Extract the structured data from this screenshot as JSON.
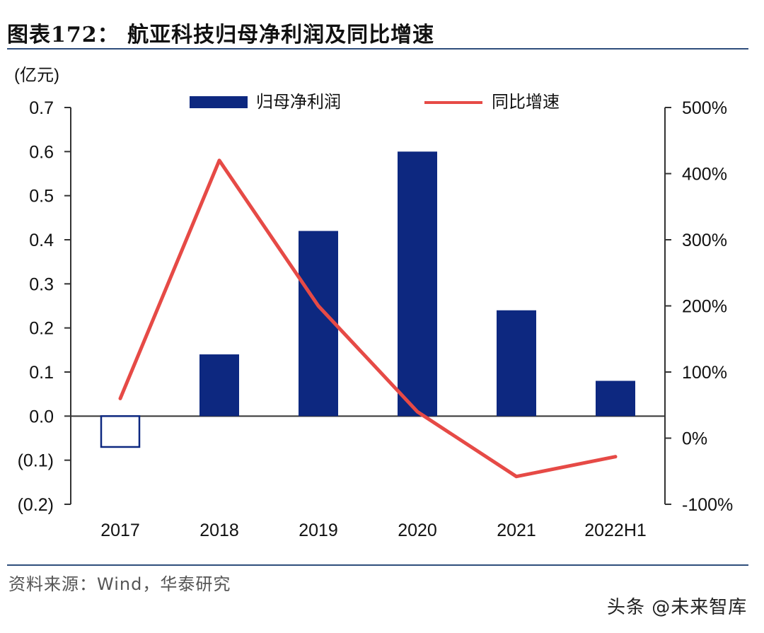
{
  "title": "图表172：  航亚科技归母净利润及同比增速",
  "source": "资料来源：Wind，华泰研究",
  "watermark": "头条 @未来智库",
  "chart_data": {
    "type": "bar+line",
    "y_left_unit": "(亿元)",
    "categories": [
      "2017",
      "2018",
      "2019",
      "2020",
      "2021",
      "2022H1"
    ],
    "series": [
      {
        "name": "归母净利润",
        "type": "bar",
        "axis": "left",
        "values": [
          -0.07,
          0.14,
          0.42,
          0.6,
          0.24,
          0.08
        ],
        "color": "#0d2880"
      },
      {
        "name": "同比增速",
        "type": "line",
        "axis": "right",
        "values": [
          60,
          420,
          200,
          40,
          -58,
          -28
        ],
        "color": "#e64a46"
      }
    ],
    "y_left": {
      "min": -0.2,
      "max": 0.7,
      "ticks": [
        "(0.2)",
        "(0.1)",
        "0.0",
        "0.1",
        "0.2",
        "0.3",
        "0.4",
        "0.5",
        "0.6",
        "0.7"
      ]
    },
    "y_right": {
      "min": -100,
      "max": 500,
      "ticks": [
        "-100%",
        "0%",
        "100%",
        "200%",
        "300%",
        "400%",
        "500%"
      ]
    },
    "legend_position": "top-center",
    "grid": false
  }
}
